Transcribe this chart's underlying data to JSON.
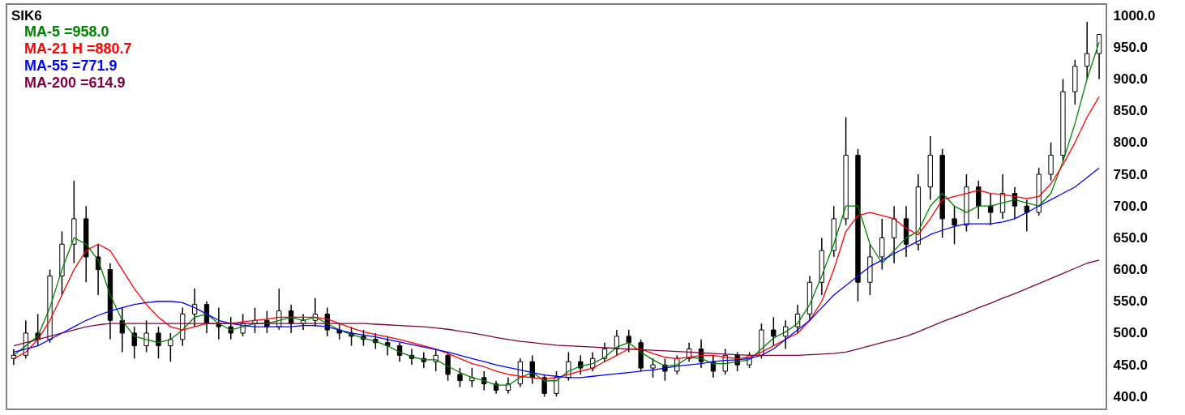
{
  "chart_data": {
    "type": "candlestick",
    "title": "SIK6",
    "categories": [
      null,
      null,
      null,
      null,
      null,
      null,
      null,
      null,
      null,
      null,
      null,
      null,
      null,
      null,
      null,
      null,
      null,
      null,
      null,
      null,
      null,
      null,
      null,
      null,
      null,
      null,
      null,
      null,
      null,
      null,
      null,
      null,
      null,
      null,
      null,
      null,
      null,
      null,
      null,
      null,
      null,
      null,
      null,
      null,
      null,
      null,
      null,
      null,
      null,
      null,
      null,
      null,
      null,
      null,
      null,
      null,
      null,
      null,
      null,
      null,
      null,
      null,
      null,
      null,
      null,
      null,
      null,
      null,
      null,
      null,
      null,
      null,
      null,
      null,
      null,
      null,
      null,
      null,
      null,
      null,
      null,
      null,
      null,
      null,
      null,
      null,
      null,
      null,
      null,
      null,
      null
    ],
    "ohlc": [
      [
        460,
        475,
        450,
        465
      ],
      [
        465,
        520,
        460,
        500
      ],
      [
        500,
        530,
        480,
        490
      ],
      [
        490,
        600,
        485,
        590
      ],
      [
        590,
        660,
        560,
        640
      ],
      [
        640,
        740,
        610,
        680
      ],
      [
        680,
        700,
        580,
        620
      ],
      [
        620,
        640,
        560,
        600
      ],
      [
        600,
        610,
        490,
        520
      ],
      [
        520,
        540,
        470,
        500
      ],
      [
        500,
        510,
        460,
        480
      ],
      [
        480,
        520,
        470,
        500
      ],
      [
        500,
        510,
        460,
        480
      ],
      [
        480,
        500,
        455,
        490
      ],
      [
        490,
        540,
        480,
        530
      ],
      [
        530,
        570,
        510,
        545
      ],
      [
        545,
        550,
        500,
        515
      ],
      [
        515,
        540,
        490,
        510
      ],
      [
        510,
        525,
        490,
        500
      ],
      [
        500,
        530,
        495,
        515
      ],
      [
        515,
        540,
        500,
        520
      ],
      [
        520,
        535,
        500,
        510
      ],
      [
        510,
        570,
        505,
        535
      ],
      [
        535,
        545,
        500,
        515
      ],
      [
        515,
        530,
        505,
        520
      ],
      [
        520,
        555,
        510,
        530
      ],
      [
        530,
        540,
        495,
        505
      ],
      [
        505,
        515,
        490,
        500
      ],
      [
        500,
        510,
        480,
        495
      ],
      [
        495,
        505,
        480,
        490
      ],
      [
        490,
        500,
        475,
        485
      ],
      [
        485,
        495,
        465,
        480
      ],
      [
        480,
        485,
        455,
        465
      ],
      [
        465,
        475,
        450,
        460
      ],
      [
        460,
        470,
        445,
        455
      ],
      [
        455,
        475,
        440,
        465
      ],
      [
        465,
        470,
        425,
        435
      ],
      [
        435,
        445,
        415,
        425
      ],
      [
        425,
        445,
        415,
        430
      ],
      [
        430,
        440,
        410,
        420
      ],
      [
        420,
        425,
        405,
        410
      ],
      [
        410,
        430,
        405,
        420
      ],
      [
        420,
        460,
        415,
        455
      ],
      [
        455,
        465,
        420,
        430
      ],
      [
        430,
        435,
        400,
        405
      ],
      [
        405,
        440,
        400,
        430
      ],
      [
        430,
        470,
        425,
        455
      ],
      [
        455,
        465,
        435,
        445
      ],
      [
        445,
        470,
        440,
        460
      ],
      [
        460,
        485,
        455,
        475
      ],
      [
        475,
        505,
        465,
        495
      ],
      [
        495,
        505,
        470,
        485
      ],
      [
        485,
        490,
        440,
        445
      ],
      [
        445,
        460,
        430,
        450
      ],
      [
        450,
        460,
        425,
        440
      ],
      [
        440,
        465,
        435,
        460
      ],
      [
        460,
        485,
        455,
        475
      ],
      [
        475,
        490,
        445,
        455
      ],
      [
        455,
        465,
        430,
        440
      ],
      [
        440,
        475,
        435,
        465
      ],
      [
        465,
        470,
        440,
        450
      ],
      [
        450,
        470,
        445,
        465
      ],
      [
        465,
        515,
        460,
        505
      ],
      [
        505,
        525,
        480,
        495
      ],
      [
        495,
        520,
        475,
        510
      ],
      [
        510,
        545,
        500,
        530
      ],
      [
        530,
        590,
        520,
        580
      ],
      [
        580,
        650,
        560,
        630
      ],
      [
        630,
        700,
        620,
        680
      ],
      [
        680,
        840,
        670,
        780
      ],
      [
        780,
        790,
        550,
        580
      ],
      [
        580,
        640,
        560,
        620
      ],
      [
        620,
        680,
        600,
        650
      ],
      [
        650,
        700,
        610,
        680
      ],
      [
        680,
        700,
        620,
        640
      ],
      [
        640,
        750,
        630,
        730
      ],
      [
        730,
        810,
        710,
        780
      ],
      [
        780,
        790,
        650,
        680
      ],
      [
        680,
        700,
        640,
        670
      ],
      [
        670,
        750,
        660,
        730
      ],
      [
        730,
        740,
        680,
        700
      ],
      [
        700,
        720,
        670,
        690
      ],
      [
        690,
        750,
        680,
        720
      ],
      [
        720,
        730,
        680,
        700
      ],
      [
        700,
        710,
        660,
        690
      ],
      [
        690,
        760,
        685,
        750
      ],
      [
        750,
        800,
        740,
        780
      ],
      [
        780,
        900,
        770,
        880
      ],
      [
        880,
        930,
        860,
        920
      ],
      [
        920,
        990,
        900,
        940
      ],
      [
        940,
        970,
        900,
        970
      ]
    ],
    "color": "#000000",
    "series": [
      {
        "name": "MA-5 =958.0",
        "type": "line",
        "color": "#008000",
        "values": [
          465,
          480,
          495,
          540,
          600,
          650,
          640,
          615,
          560,
          520,
          495,
          490,
          485,
          490,
          505,
          525,
          530,
          515,
          505,
          510,
          515,
          515,
          520,
          525,
          520,
          525,
          515,
          505,
          498,
          492,
          487,
          480,
          470,
          463,
          458,
          458,
          448,
          438,
          430,
          425,
          418,
          418,
          430,
          438,
          425,
          425,
          440,
          448,
          452,
          462,
          478,
          485,
          470,
          458,
          448,
          450,
          462,
          460,
          452,
          452,
          455,
          458,
          475,
          492,
          502,
          515,
          545,
          590,
          640,
          700,
          700,
          640,
          610,
          630,
          650,
          660,
          700,
          720,
          700,
          690,
          700,
          700,
          705,
          710,
          705,
          700,
          720,
          770,
          830,
          900,
          958
        ]
      },
      {
        "name": "MA-21 H =880.7",
        "type": "line",
        "color": "#ff0000",
        "values": [
          460,
          470,
          490,
          520,
          560,
          600,
          630,
          640,
          630,
          600,
          570,
          545,
          525,
          510,
          505,
          510,
          515,
          515,
          515,
          518,
          520,
          522,
          525,
          525,
          525,
          525,
          522,
          515,
          508,
          502,
          498,
          494,
          490,
          485,
          480,
          475,
          468,
          460,
          452,
          447,
          440,
          435,
          432,
          430,
          428,
          430,
          435,
          440,
          445,
          455,
          465,
          475,
          475,
          468,
          462,
          460,
          462,
          465,
          465,
          462,
          460,
          462,
          470,
          480,
          490,
          500,
          520,
          550,
          600,
          660,
          685,
          690,
          685,
          680,
          665,
          655,
          680,
          710,
          715,
          720,
          725,
          720,
          718,
          715,
          712,
          715,
          735,
          765,
          800,
          840,
          872
        ]
      },
      {
        "name": "MA-55 =771.9",
        "type": "line",
        "color": "#0000ff",
        "values": [
          470,
          475,
          480,
          490,
          500,
          510,
          520,
          528,
          535,
          540,
          545,
          548,
          550,
          550,
          548,
          540,
          530,
          520,
          515,
          512,
          510,
          510,
          510,
          510,
          512,
          512,
          510,
          505,
          500,
          497,
          494,
          490,
          486,
          482,
          478,
          474,
          470,
          465,
          460,
          455,
          450,
          446,
          442,
          438,
          434,
          432,
          430,
          430,
          432,
          434,
          436,
          438,
          440,
          442,
          445,
          448,
          450,
          452,
          455,
          457,
          458,
          460,
          465,
          475,
          490,
          505,
          520,
          540,
          560,
          575,
          590,
          605,
          615,
          625,
          635,
          645,
          655,
          662,
          668,
          672,
          672,
          672,
          675,
          680,
          690,
          700,
          710,
          720,
          730,
          745,
          760
        ]
      },
      {
        "name": "MA-200 =614.9",
        "type": "line",
        "color": "#800040",
        "values": [
          480,
          485,
          490,
          495,
          500,
          505,
          510,
          513,
          515,
          515,
          515,
          515,
          515,
          515,
          515,
          515,
          515,
          515,
          515,
          515,
          515,
          515,
          515,
          515,
          515,
          515,
          515,
          515,
          515,
          515,
          514,
          513,
          512,
          511,
          510,
          508,
          506,
          503,
          500,
          497,
          493,
          490,
          487,
          485,
          483,
          481,
          480,
          479,
          478,
          477,
          476,
          475,
          474,
          473,
          472,
          471,
          470,
          469,
          468,
          467,
          466,
          465,
          465,
          465,
          465,
          465,
          466,
          467,
          468,
          470,
          475,
          480,
          485,
          490,
          495,
          502,
          510,
          518,
          525,
          532,
          540,
          547,
          555,
          562,
          570,
          578,
          586,
          594,
          602,
          610,
          615
        ]
      }
    ],
    "ylim": [
      380,
      1018
    ],
    "yticks": [
      {
        "value": 400,
        "label": "400.0"
      },
      {
        "value": 450,
        "label": "450.0"
      },
      {
        "value": 500,
        "label": "500.0"
      },
      {
        "value": 550,
        "label": "550.0"
      },
      {
        "value": 600,
        "label": "600.0"
      },
      {
        "value": 650,
        "label": "650.0"
      },
      {
        "value": 700,
        "label": "700.0"
      },
      {
        "value": 750,
        "label": "750.0"
      },
      {
        "value": 800,
        "label": "800.0"
      },
      {
        "value": 850,
        "label": "850.0"
      },
      {
        "value": 900,
        "label": "900.0"
      },
      {
        "value": 950,
        "label": "950.0"
      },
      {
        "value": 1000,
        "label": "1000.0"
      }
    ],
    "tick_labels": "y",
    "legend": "top left",
    "marker": "none",
    "line_style": "solid"
  }
}
